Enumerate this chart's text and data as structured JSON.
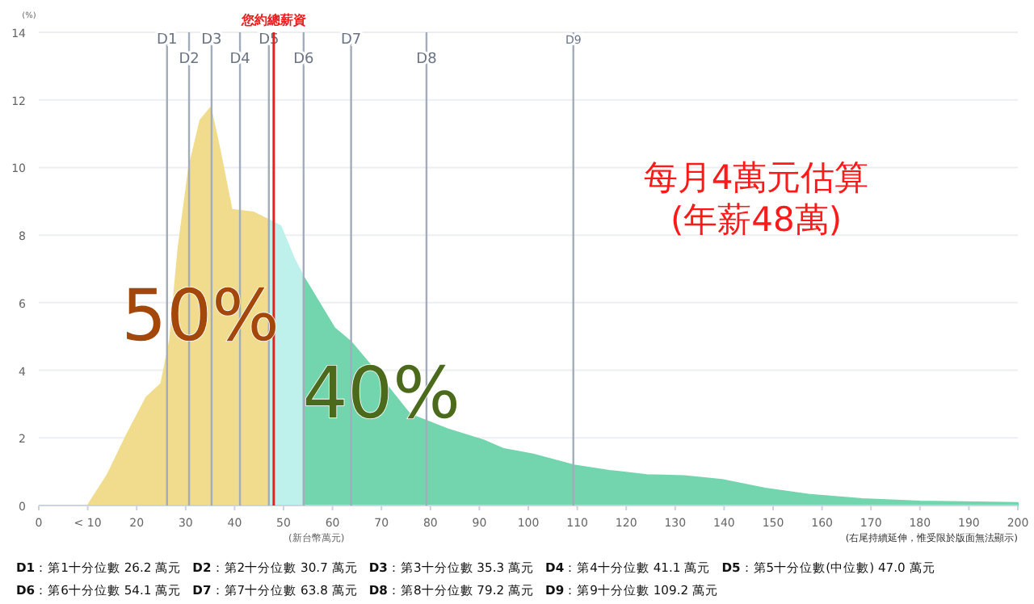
{
  "chart_data": {
    "type": "area",
    "ylabel": "(%)",
    "xlabel": "(新台幣萬元)",
    "series": [
      {
        "color": "#f0dc8c",
        "x": [
          10,
          14,
          18,
          22,
          25,
          26.8,
          28.5,
          30.7,
          33,
          35.1,
          37,
          39.4,
          43.9,
          47
        ],
        "values": [
          0,
          0.9,
          2.1,
          3.2,
          3.6,
          4.9,
          7.6,
          10.0,
          11.4,
          11.77,
          10.5,
          8.75,
          8.67,
          8.45
        ]
      },
      {
        "color": "#bff1ec",
        "x": [
          47,
          49.4,
          52.1,
          54.1
        ],
        "values": [
          8.45,
          8.27,
          7.32,
          6.76
        ]
      },
      {
        "color": "#72d5ae",
        "x": [
          54.1,
          60.4,
          63.7,
          69.2,
          75.8,
          83.5,
          91.2,
          95,
          101,
          109.3,
          116.5,
          124.2,
          131.9,
          139.6,
          148.4,
          157.2,
          168.2,
          180,
          200
        ],
        "values": [
          6.76,
          5.25,
          4.85,
          3.9,
          2.7,
          2.26,
          1.91,
          1.67,
          1.51,
          1.19,
          1.03,
          0.9,
          0.87,
          0.76,
          0.5,
          0.32,
          0.19,
          0.12,
          0.08
        ]
      }
    ],
    "xlim": [
      0,
      200
    ],
    "ylim": [
      0,
      14
    ],
    "xticks": [
      0,
      {
        "value": 10,
        "label": "< 10"
      },
      20,
      30,
      40,
      50,
      60,
      70,
      80,
      90,
      100,
      110,
      120,
      130,
      140,
      150,
      160,
      170,
      180,
      190,
      200
    ],
    "yticks": [
      0,
      2,
      4,
      6,
      8,
      10,
      12,
      14
    ],
    "grid": "y",
    "ref_lines": [
      {
        "axis": "x",
        "value": 26.2,
        "label": "D1",
        "color": "#a3acba"
      },
      {
        "axis": "x",
        "value": 30.7,
        "label": "D2",
        "color": "#a3acba"
      },
      {
        "axis": "x",
        "value": 35.3,
        "label": "D3",
        "color": "#a3acba"
      },
      {
        "axis": "x",
        "value": 41.1,
        "label": "D4",
        "color": "#a3acba"
      },
      {
        "axis": "x",
        "value": 47.0,
        "label": "D5",
        "color": "#a3acba"
      },
      {
        "axis": "x",
        "value": 54.1,
        "label": "D6",
        "color": "#a3acba"
      },
      {
        "axis": "x",
        "value": 63.8,
        "label": "D7",
        "color": "#a3acba"
      },
      {
        "axis": "x",
        "value": 79.2,
        "label": "D8",
        "color": "#a3acba"
      },
      {
        "axis": "x",
        "value": 109.2,
        "label": "D9",
        "color": "#a3acba"
      },
      {
        "axis": "x",
        "value": 48,
        "label": "您約總薪資",
        "color": "#ee1c1c"
      }
    ],
    "annotations": [
      "50%",
      "40%",
      "每月4萬元估算\n(年薪48萬)",
      "(右尾持續延伸，惟受限於版面無法顯示)",
      "D1：第1十分位數 26.2 萬元",
      "D2：第2十分位數 30.7 萬元",
      "D3：第3十分位數 35.3 萬元",
      "D4：第4十分位數 41.1 萬元",
      "D5：第5十分位數(中位數) 47.0 萬元",
      "D6：第6十分位數 54.1 萬元",
      "D7：第7十分位數 63.8 萬元",
      "D8：第8十分位數 79.2 萬元",
      "D9：第9十分位數 109.2 萬元"
    ]
  }
}
